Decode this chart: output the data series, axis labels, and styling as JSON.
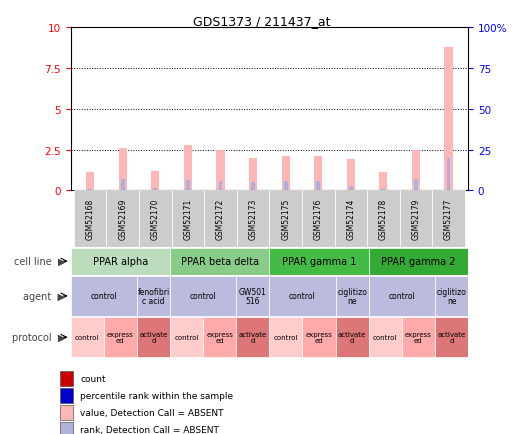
{
  "title": "GDS1373 / 211437_at",
  "samples": [
    "GSM52168",
    "GSM52169",
    "GSM52170",
    "GSM52171",
    "GSM52172",
    "GSM52173",
    "GSM52175",
    "GSM52176",
    "GSM52174",
    "GSM52178",
    "GSM52179",
    "GSM52177"
  ],
  "bar_values": [
    1.1,
    2.6,
    1.2,
    2.8,
    2.5,
    2.0,
    2.1,
    2.1,
    1.9,
    1.1,
    2.5,
    8.8
  ],
  "rank_values": [
    0.1,
    0.7,
    0.15,
    0.65,
    0.55,
    0.5,
    0.55,
    0.6,
    0.3,
    0.1,
    0.7,
    2.0
  ],
  "bar_color": "#FFB6B6",
  "rank_color": "#B0B0DD",
  "ylim": [
    0,
    10
  ],
  "yticks": [
    0,
    2.5,
    5.0,
    7.5,
    10
  ],
  "ytick_labels_left": [
    "0",
    "2.5",
    "5",
    "7.5",
    "10"
  ],
  "ytick_labels_right": [
    "0",
    "25",
    "50",
    "75",
    "100%"
  ],
  "cell_lines": [
    {
      "label": "PPAR alpha",
      "start": 0,
      "end": 3,
      "color": "#BBDDBB"
    },
    {
      "label": "PPAR beta delta",
      "start": 3,
      "end": 6,
      "color": "#88CC88"
    },
    {
      "label": "PPAR gamma 1",
      "start": 6,
      "end": 9,
      "color": "#44BB44"
    },
    {
      "label": "PPAR gamma 2",
      "start": 9,
      "end": 12,
      "color": "#33AA33"
    }
  ],
  "agents": [
    {
      "label": "control",
      "start": 0,
      "end": 2,
      "color": "#BBBBDD"
    },
    {
      "label": "fenofibri\nc acid",
      "start": 2,
      "end": 3,
      "color": "#BBBBDD"
    },
    {
      "label": "control",
      "start": 3,
      "end": 5,
      "color": "#BBBBDD"
    },
    {
      "label": "GW501\n516",
      "start": 5,
      "end": 6,
      "color": "#BBBBDD"
    },
    {
      "label": "control",
      "start": 6,
      "end": 8,
      "color": "#BBBBDD"
    },
    {
      "label": "ciglitizo\nne",
      "start": 8,
      "end": 9,
      "color": "#BBBBDD"
    },
    {
      "label": "control",
      "start": 9,
      "end": 11,
      "color": "#BBBBDD"
    },
    {
      "label": "ciglitizo\nne",
      "start": 11,
      "end": 12,
      "color": "#BBBBDD"
    }
  ],
  "protocols": [
    {
      "label": "control",
      "start": 0,
      "end": 1,
      "color": "#FFCCCC"
    },
    {
      "label": "express\ned",
      "start": 1,
      "end": 2,
      "color": "#FFAAAA"
    },
    {
      "label": "activate\nd",
      "start": 2,
      "end": 3,
      "color": "#DD7777"
    },
    {
      "label": "control",
      "start": 3,
      "end": 4,
      "color": "#FFCCCC"
    },
    {
      "label": "express\ned",
      "start": 4,
      "end": 5,
      "color": "#FFAAAA"
    },
    {
      "label": "activate\nd",
      "start": 5,
      "end": 6,
      "color": "#DD7777"
    },
    {
      "label": "control",
      "start": 6,
      "end": 7,
      "color": "#FFCCCC"
    },
    {
      "label": "express\ned",
      "start": 7,
      "end": 8,
      "color": "#FFAAAA"
    },
    {
      "label": "activate\nd",
      "start": 8,
      "end": 9,
      "color": "#DD7777"
    },
    {
      "label": "control",
      "start": 9,
      "end": 10,
      "color": "#FFCCCC"
    },
    {
      "label": "express\ned",
      "start": 10,
      "end": 11,
      "color": "#FFAAAA"
    },
    {
      "label": "activate\nd",
      "start": 11,
      "end": 12,
      "color": "#DD7777"
    }
  ],
  "legend_items": [
    {
      "label": "count",
      "color": "#CC0000",
      "is_rect": true
    },
    {
      "label": "percentile rank within the sample",
      "color": "#0000CC",
      "is_rect": true
    },
    {
      "label": "value, Detection Call = ABSENT",
      "color": "#FFB6B6",
      "is_rect": true
    },
    {
      "label": "rank, Detection Call = ABSENT",
      "color": "#B0B0DD",
      "is_rect": true
    }
  ],
  "row_labels": [
    "cell line",
    "agent",
    "protocol"
  ],
  "sample_bg_color": "#CCCCCC",
  "background_color": "#FFFFFF",
  "left_label_color": "#444444"
}
